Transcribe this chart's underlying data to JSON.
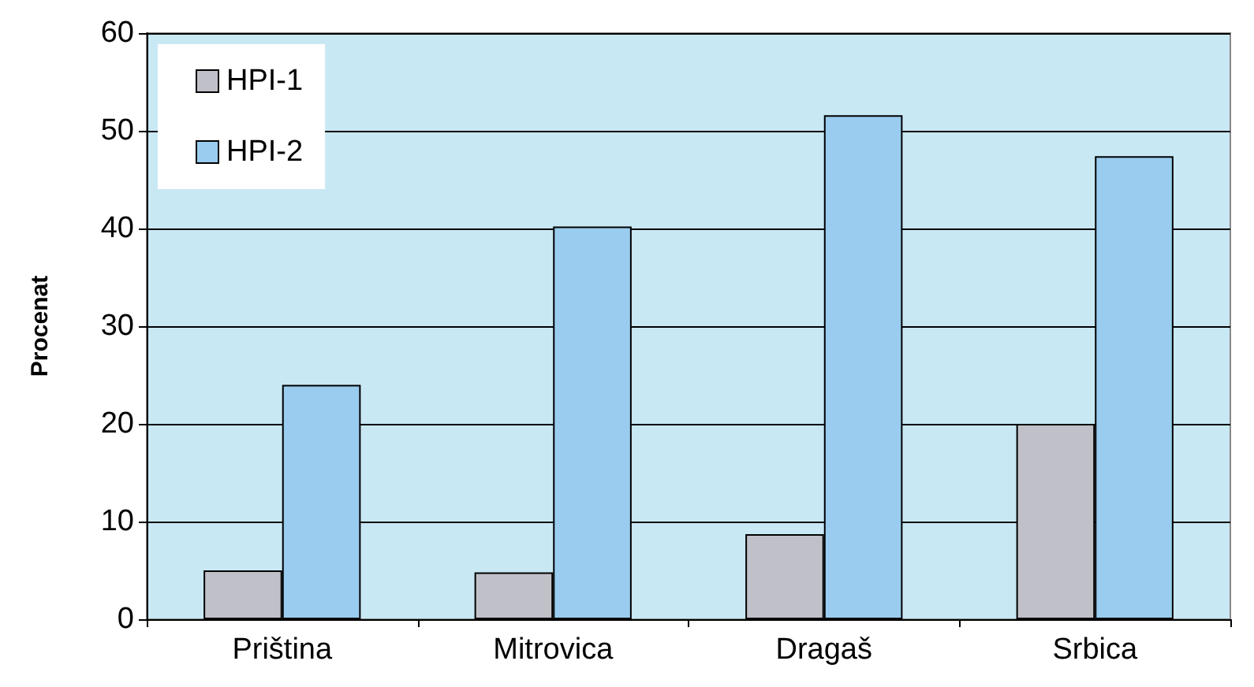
{
  "chart_data": {
    "type": "bar",
    "ylabel": "Procenat",
    "categories": [
      "Priština",
      "Mitrovica",
      "Dragaš",
      "Srbica"
    ],
    "series": [
      {
        "name": "HPI-1",
        "color": "#c0c0c8",
        "values": [
          5.0,
          4.8,
          8.7,
          20.0
        ]
      },
      {
        "name": "HPI-2",
        "color": "#99ccee",
        "values": [
          24.0,
          40.2,
          51.6,
          47.4
        ]
      }
    ],
    "ylim": [
      0,
      60
    ],
    "yticks": [
      0,
      10,
      20,
      30,
      40,
      50,
      60
    ],
    "grid": "y",
    "legend": "top left"
  }
}
